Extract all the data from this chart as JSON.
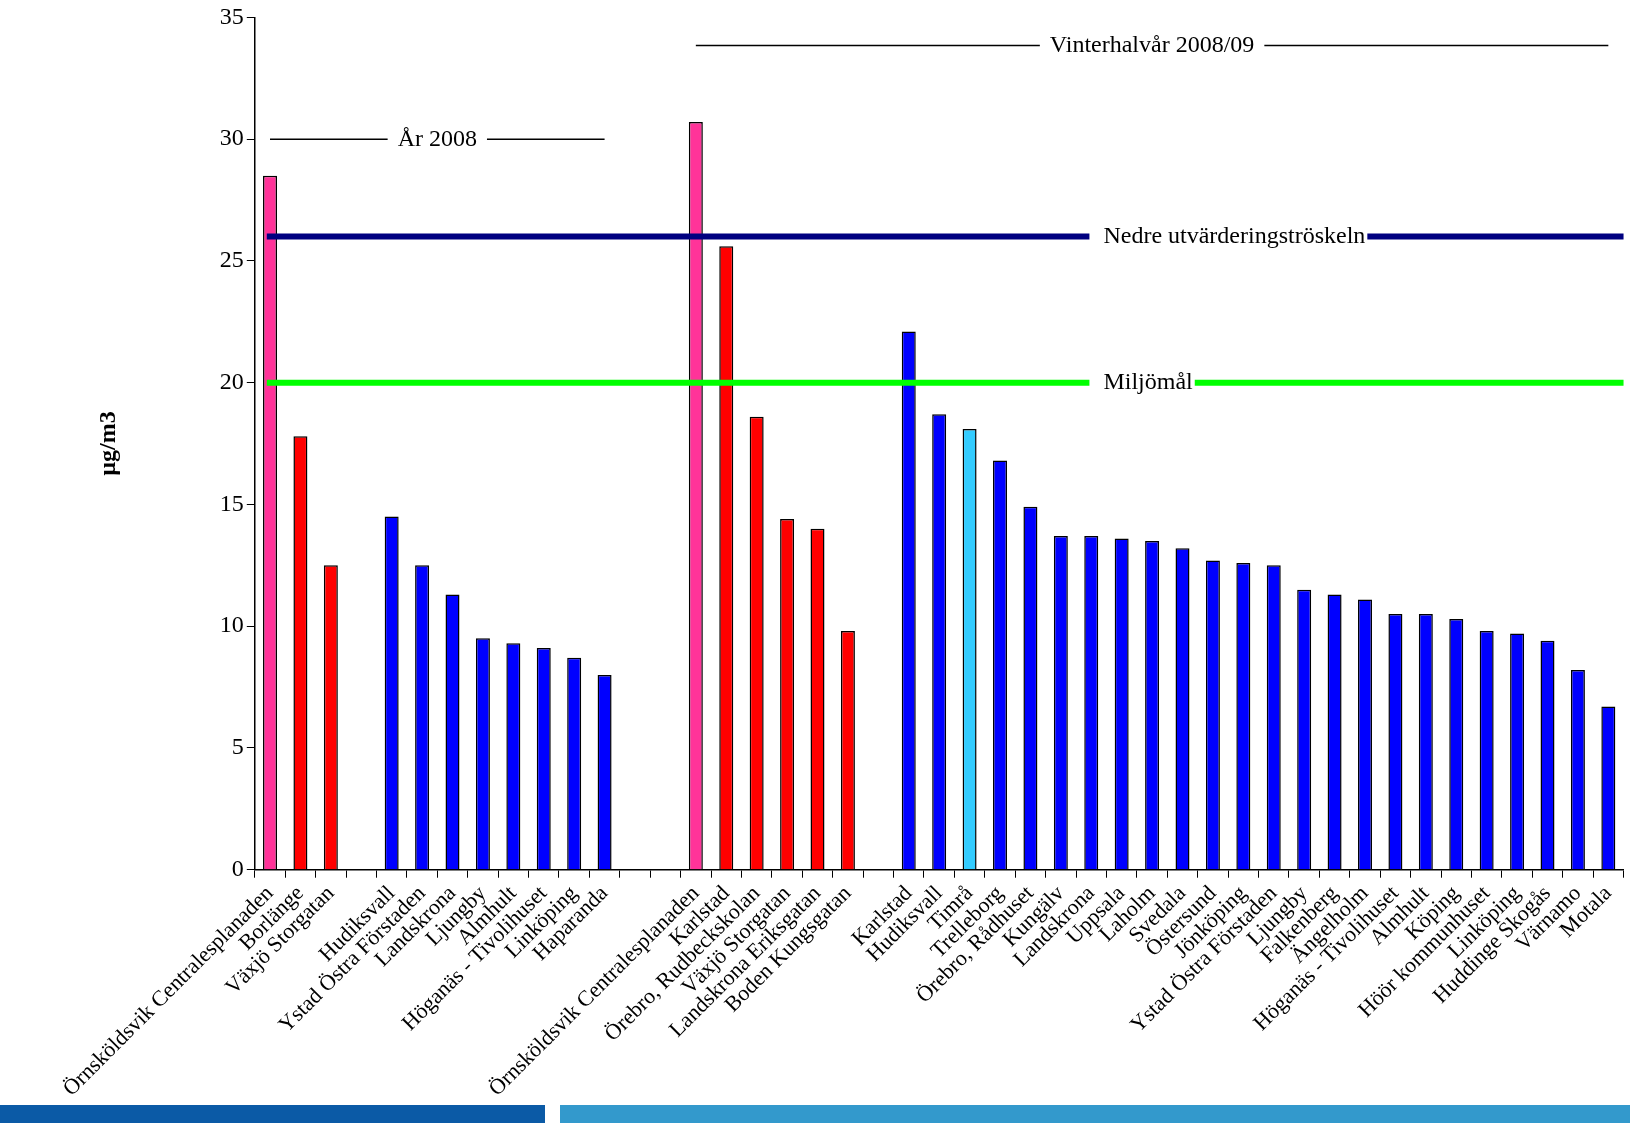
{
  "chart_data": {
    "type": "bar",
    "ylabel": "µg/m3",
    "categories": [
      "Örnsköldsvik Centralesplanaden",
      "Borlänge",
      "Växjö Storgatan",
      null,
      "Hudiksvall",
      "Ystad Östra Förstaden",
      "Landskrona",
      "Ljungby",
      "Almhult",
      "Höganäs - Tivolihuset",
      "Linköping",
      "Haparanda",
      null,
      null,
      "Örnsköldsvik Centralesplanaden",
      "Karlstad",
      "Örebro, Rudbeckskolan",
      "Växjö Storgatan",
      "Landskrona Eriksgatan",
      "Boden Kungsgatan",
      null,
      "Karlstad",
      "Hudiksvall",
      "Timrå",
      "Trelleborg",
      "Örebro, Rådhuset",
      "Kungälv",
      "Landskrona",
      "Uppsala",
      "Laholm",
      "Svedala",
      "Östersund",
      "Jönköping",
      "Ystad Östra Förstaden",
      "Ljungby",
      "Falkenberg",
      "Ängelholm",
      "Höganäs - Tivolihuset",
      "Almhult",
      "Köping",
      "Höör kommunhuset",
      "Linköping",
      "Huddinge Skogås",
      "Värnamo",
      "Motala"
    ],
    "values": [
      28.5,
      17.8,
      12.5,
      null,
      14.5,
      12.5,
      11.3,
      9.5,
      9.3,
      9.1,
      8.7,
      8.0,
      null,
      null,
      30.7,
      25.6,
      18.6,
      14.4,
      14.0,
      9.8,
      null,
      22.1,
      18.7,
      18.1,
      16.8,
      14.9,
      13.7,
      13.7,
      13.6,
      13.5,
      13.2,
      12.7,
      12.6,
      12.5,
      11.5,
      11.3,
      11.1,
      10.5,
      10.5,
      10.3,
      9.8,
      9.7,
      9.4,
      8.2,
      6.7
    ],
    "colors": [
      "#ff3399",
      "#ff0000",
      "#ff0000",
      null,
      "#0000ff",
      "#0000ff",
      "#0000ff",
      "#0000ff",
      "#0000ff",
      "#0000ff",
      "#0000ff",
      "#0000ff",
      null,
      null,
      "#ff3399",
      "#ff0000",
      "#ff0000",
      "#ff0000",
      "#ff0000",
      "#ff0000",
      null,
      "#0000ff",
      "#0000ff",
      "#33ccff",
      "#0000ff",
      "#0000ff",
      "#0000ff",
      "#0000ff",
      "#0000ff",
      "#0000ff",
      "#0000ff",
      "#0000ff",
      "#0000ff",
      "#0000ff",
      "#0000ff",
      "#0000ff",
      "#0000ff",
      "#0000ff",
      "#0000ff",
      "#0000ff",
      "#0000ff",
      "#0000ff",
      "#0000ff",
      "#0000ff",
      "#0000ff"
    ],
    "ylim": [
      0,
      35
    ],
    "yticks": [
      0,
      5,
      10,
      15,
      20,
      25,
      30,
      35
    ],
    "ref_lines": [
      {
        "axis": "y",
        "value": 26,
        "label": "Nedre utvärderingströskeln",
        "color": "#000080"
      },
      {
        "axis": "y",
        "value": 20,
        "label": "Miljömål",
        "color": "#00ff00"
      }
    ],
    "annotations": [
      "År 2008",
      "Vinterhalvår 2008/09"
    ]
  }
}
